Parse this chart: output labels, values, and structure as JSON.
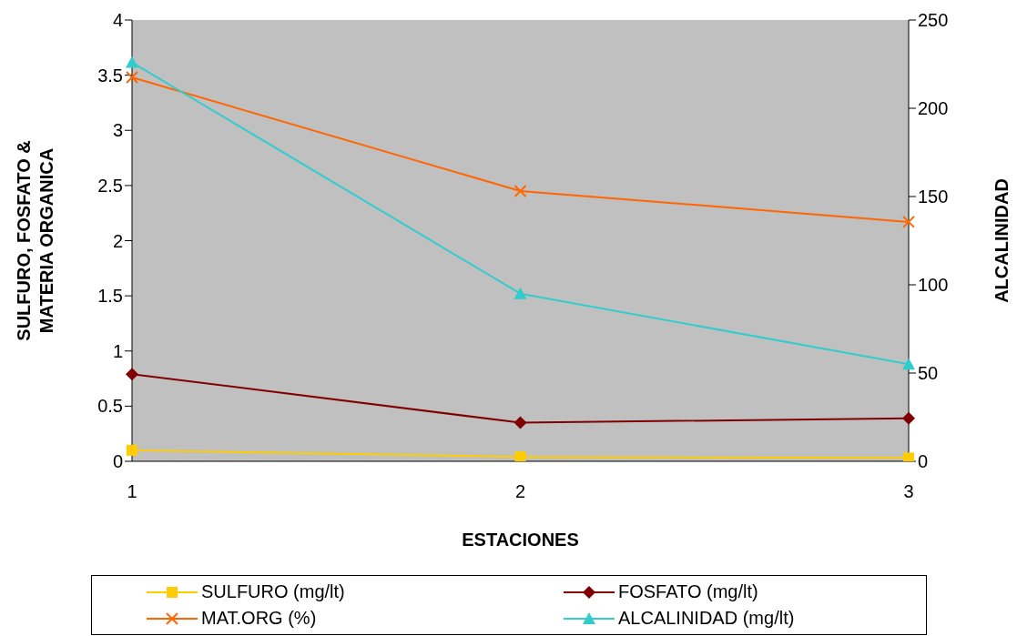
{
  "chart_data": {
    "type": "line",
    "xlabel": "ESTACIONES",
    "ylabel": "SULFURO, FOSFATO & MATERIA ORGANICA",
    "y2label": "ALCALINIDAD",
    "categories": [
      "1",
      "2",
      "3"
    ],
    "series": [
      {
        "name": "SULFURO (mg/lt)",
        "color": "#ffcc00",
        "marker": "square",
        "values": [
          0.1,
          0.04,
          0.03
        ]
      },
      {
        "name": "FOSFATO (mg/lt)",
        "color": "#800000",
        "marker": "diamond",
        "values": [
          0.79,
          0.35,
          0.39
        ]
      },
      {
        "name": "MAT.ORG (%)",
        "color": "#ff6600",
        "marker": "cross",
        "values": [
          3.48,
          2.45,
          2.17
        ]
      },
      {
        "name": "ALCALINIDAD (mg/lt)",
        "color": "#33cccc",
        "marker": "triangle",
        "axis": "y2",
        "values": [
          226,
          95,
          55
        ]
      }
    ],
    "ylim": [
      0,
      4
    ],
    "yticks": [
      0,
      0.5,
      1,
      1.5,
      2,
      2.5,
      3,
      3.5,
      4
    ],
    "y2lim": [
      0,
      250
    ],
    "y2ticks": [
      0,
      50,
      100,
      150,
      200,
      250
    ],
    "grid": false,
    "legend": "bottom",
    "line_style": "solid"
  }
}
